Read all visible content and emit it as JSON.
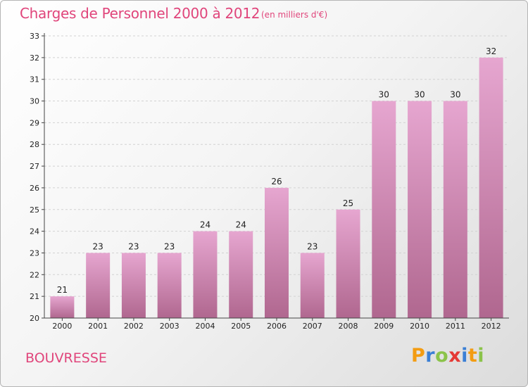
{
  "title": "Charges de Personnel 2000 à 2012",
  "subtitle": "(en milliers d'€)",
  "commune": "BOUVRESSE",
  "logo": {
    "letters": [
      "P",
      "r",
      "o",
      "x",
      "i",
      "t",
      "i"
    ],
    "colors": [
      "#f39c12",
      "#3a7fd5",
      "#8bc34a",
      "#e53935",
      "#3a7fd5",
      "#f39c12",
      "#8bc34a"
    ]
  },
  "colors": {
    "bar_top": "#e6a6d0",
    "bar_bottom": "#b0678f",
    "text_accent": "#e0457b"
  },
  "chart_data": {
    "type": "bar",
    "categories": [
      "2000",
      "2001",
      "2002",
      "2003",
      "2004",
      "2005",
      "2006",
      "2007",
      "2008",
      "2009",
      "2010",
      "2011",
      "2012"
    ],
    "values": [
      21,
      23,
      23,
      23,
      24,
      24,
      26,
      23,
      25,
      30,
      30,
      30,
      32
    ],
    "ylim": [
      20,
      33
    ],
    "yticks": [
      20,
      21,
      22,
      23,
      24,
      25,
      26,
      27,
      28,
      29,
      30,
      31,
      32,
      33
    ],
    "grid": true
  }
}
